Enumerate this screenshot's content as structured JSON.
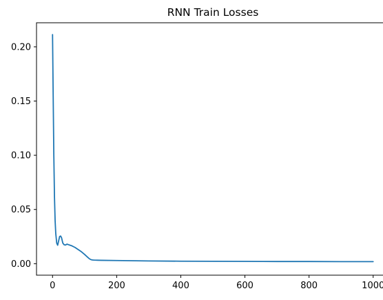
{
  "chart_data": {
    "type": "line",
    "title": "RNN Train Losses",
    "xlabel": "",
    "ylabel": "",
    "xlim": [
      -50,
      1050
    ],
    "ylim": [
      -0.0106,
      0.2222
    ],
    "xticks": [
      0,
      200,
      400,
      600,
      800,
      1000
    ],
    "yticks": [
      0.0,
      0.05,
      0.1,
      0.15,
      0.2
    ],
    "ytick_labels": [
      "0.00",
      "0.05",
      "0.10",
      "0.15",
      "0.20"
    ],
    "grid": false,
    "line_color": "#1f77b4",
    "series": [
      {
        "x": [
          0,
          2,
          4,
          6,
          8,
          10,
          13,
          16,
          19,
          22,
          25,
          28,
          32,
          36,
          40,
          45,
          50,
          55,
          60,
          70,
          80,
          90,
          100,
          110,
          115,
          120,
          125,
          130,
          140,
          150,
          200,
          300,
          400,
          500,
          600,
          700,
          800,
          900,
          1000
        ],
        "y": [
          0.2113,
          0.155,
          0.1,
          0.062,
          0.04,
          0.028,
          0.019,
          0.017,
          0.021,
          0.025,
          0.0255,
          0.024,
          0.019,
          0.0175,
          0.0172,
          0.018,
          0.0175,
          0.017,
          0.0165,
          0.015,
          0.013,
          0.011,
          0.0085,
          0.0058,
          0.0045,
          0.0037,
          0.0034,
          0.0033,
          0.0032,
          0.0031,
          0.0029,
          0.0025,
          0.0023,
          0.0022,
          0.0021,
          0.002,
          0.002,
          0.0019,
          0.0019
        ]
      }
    ]
  }
}
